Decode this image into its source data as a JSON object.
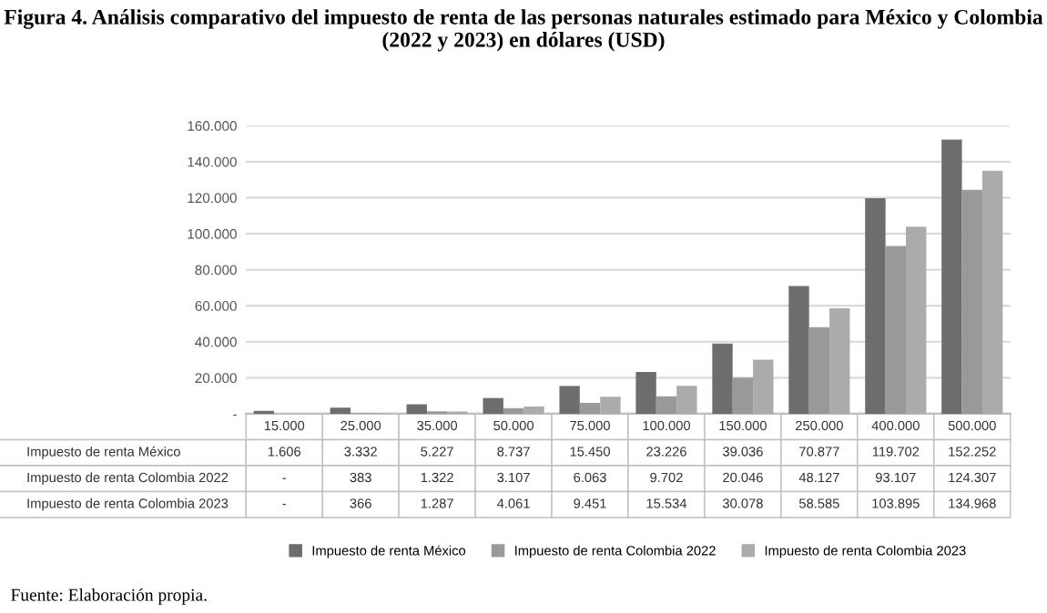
{
  "chart_data": {
    "type": "bar",
    "title": "Figura 4. Análisis comparativo del impuesto de renta de las personas naturales estimado para México y Colombia (2022 y 2023) en dólares (USD)",
    "categories": [
      "15.000",
      "25.000",
      "35.000",
      "50.000",
      "75.000",
      "100.000",
      "150.000",
      "250.000",
      "400.000",
      "500.000"
    ],
    "series": [
      {
        "name": "Impuesto de renta México",
        "color": "#6d6d6f",
        "values": [
          1606,
          3332,
          5227,
          8737,
          15450,
          23226,
          39036,
          70877,
          119702,
          152252
        ],
        "value_labels": [
          "1.606",
          "3.332",
          "5.227",
          "8.737",
          "15.450",
          "23.226",
          "39.036",
          "70.877",
          "119.702",
          "152.252"
        ]
      },
      {
        "name": "Impuesto de renta Colombia 2022",
        "color": "#99999b",
        "values": [
          null,
          383,
          1322,
          3107,
          6063,
          9702,
          20046,
          48127,
          93107,
          124307
        ],
        "value_labels": [
          "-",
          "383",
          "1.322",
          "3.107",
          "6.063",
          "9.702",
          "20.046",
          "48.127",
          "93.107",
          "124.307"
        ]
      },
      {
        "name": "Impuesto de renta Colombia 2023",
        "color": "#ababad",
        "values": [
          null,
          366,
          1287,
          4061,
          9451,
          15534,
          30078,
          58585,
          103895,
          134968
        ],
        "value_labels": [
          "-",
          "366",
          "1.287",
          "4.061",
          "9.451",
          "15.534",
          "30.078",
          "58.585",
          "103.895",
          "134.968"
        ]
      }
    ],
    "ylim": [
      0,
      160000
    ],
    "yticks": [
      {
        "value": 0,
        "label": "-"
      },
      {
        "value": 20000,
        "label": "20.000"
      },
      {
        "value": 40000,
        "label": "40.000"
      },
      {
        "value": 60000,
        "label": "60.000"
      },
      {
        "value": 80000,
        "label": "80.000"
      },
      {
        "value": 100000,
        "label": "100.000"
      },
      {
        "value": 120000,
        "label": "120.000"
      },
      {
        "value": 140000,
        "label": "140.000"
      },
      {
        "value": 160000,
        "label": "160.000"
      }
    ],
    "grid": "y",
    "legend": "bottom",
    "annotations": [
      "Fuente: Elaboración propia."
    ]
  }
}
